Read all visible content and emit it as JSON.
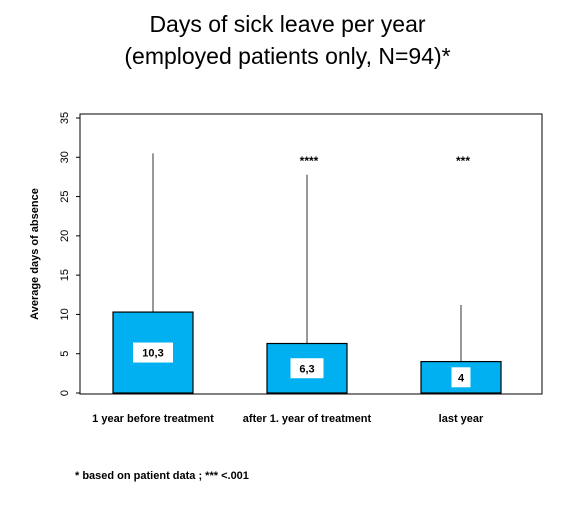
{
  "chart_data": {
    "type": "bar",
    "title": "Days of sick leave per year",
    "subtitle": "(employed patients only, N=94)*",
    "ylabel": "Average days of absence",
    "xlabel": "",
    "ylim": [
      0,
      35
    ],
    "yticks": [
      0,
      5,
      10,
      15,
      20,
      25,
      30,
      35
    ],
    "categories": [
      "1 year before treatment",
      "after 1. year of treatment",
      "last year"
    ],
    "values": [
      10.3,
      6.3,
      4
    ],
    "value_labels": [
      "10,3",
      "6,3",
      "4"
    ],
    "error_upper": [
      30.5,
      27.8,
      11.2
    ],
    "significance": [
      "",
      "****",
      "***"
    ],
    "bar_color": "#00b0f0",
    "grid": false,
    "legend": "none"
  },
  "footnote": "* based on patient data ; *** <.001"
}
